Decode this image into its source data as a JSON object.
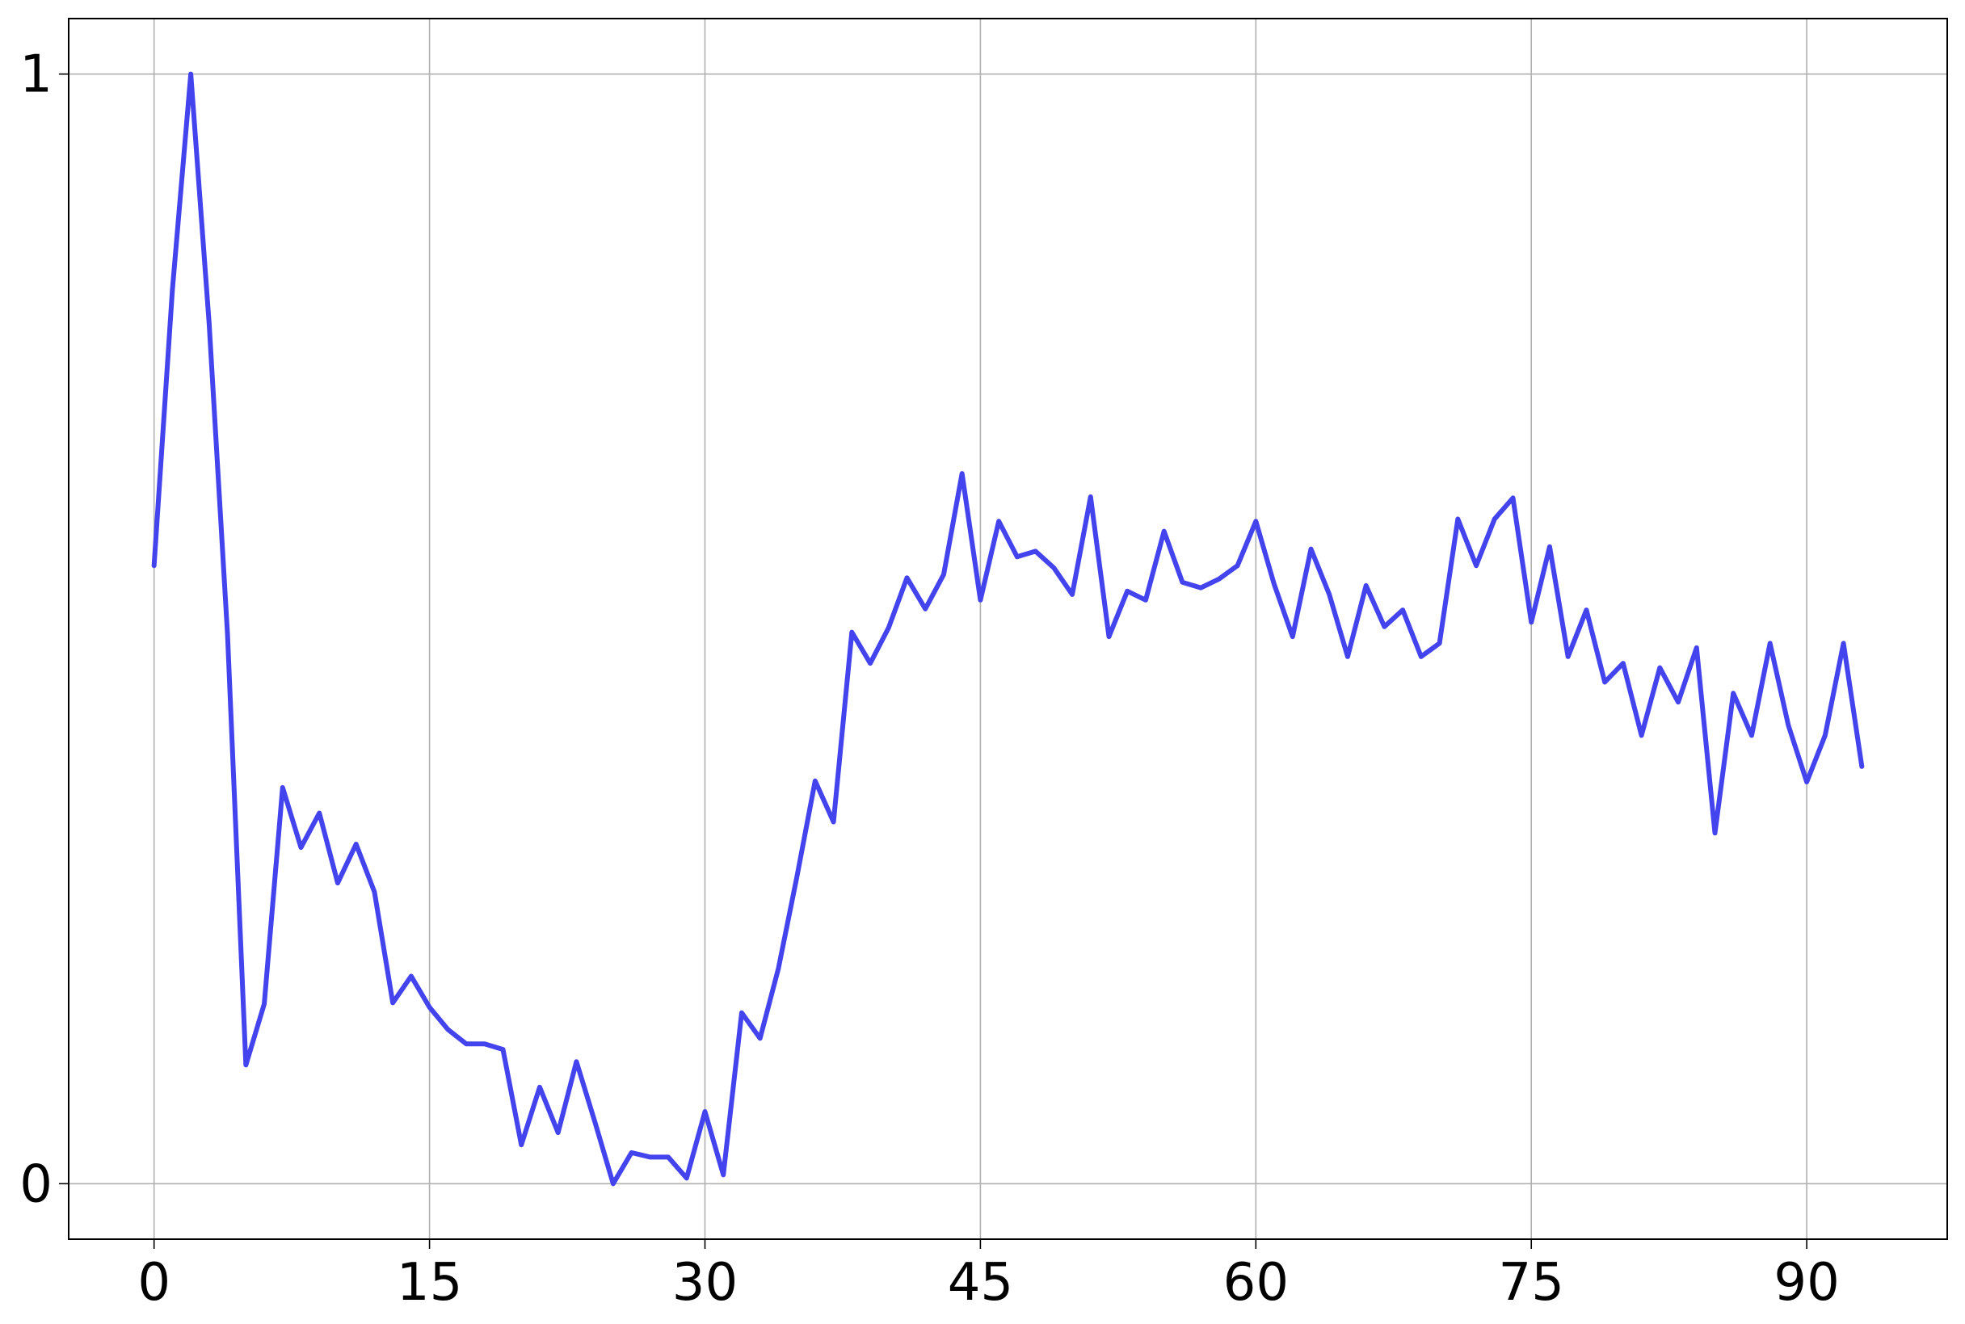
{
  "chart_data": {
    "type": "line",
    "title": "",
    "xlabel": "",
    "ylabel": "",
    "xlim": [
      -4.65,
      97.65
    ],
    "ylim": [
      -0.05,
      1.05
    ],
    "x_ticks": [
      0,
      15,
      30,
      45,
      60,
      75,
      90
    ],
    "x_tick_labels": [
      "0",
      "15",
      "30",
      "45",
      "60",
      "75",
      "90"
    ],
    "y_ticks": [
      0,
      1
    ],
    "y_tick_labels": [
      "0",
      "1"
    ],
    "grid": true,
    "legend": "none",
    "series": [
      {
        "color": "#4444ee",
        "x": [
          0,
          1,
          2,
          3,
          4,
          5,
          6,
          7,
          8,
          9,
          10,
          11,
          12,
          13,
          14,
          15,
          16,
          17,
          18,
          19,
          20,
          21,
          22,
          23,
          24,
          25,
          26,
          27,
          28,
          29,
          30,
          31,
          32,
          33,
          34,
          35,
          36,
          37,
          38,
          39,
          40,
          41,
          42,
          43,
          44,
          45,
          46,
          47,
          48,
          49,
          50,
          51,
          52,
          53,
          54,
          55,
          56,
          57,
          58,
          59,
          60,
          61,
          62,
          63,
          64,
          65,
          66,
          67,
          68,
          69,
          70,
          71,
          72,
          73,
          74,
          75,
          76,
          77,
          78,
          79,
          80,
          81,
          82,
          83,
          84,
          85,
          86,
          87,
          88,
          89,
          90,
          91,
          92,
          93
        ],
        "values": [
          0.557,
          0.806,
          1.0,
          0.775,
          0.495,
          0.107,
          0.162,
          0.357,
          0.303,
          0.334,
          0.271,
          0.306,
          0.263,
          0.163,
          0.187,
          0.159,
          0.139,
          0.126,
          0.126,
          0.121,
          0.035,
          0.087,
          0.046,
          0.11,
          0.056,
          0.0,
          0.028,
          0.024,
          0.024,
          0.005,
          0.065,
          0.008,
          0.154,
          0.131,
          0.194,
          0.276,
          0.363,
          0.326,
          0.497,
          0.469,
          0.501,
          0.546,
          0.518,
          0.549,
          0.64,
          0.526,
          0.597,
          0.565,
          0.57,
          0.555,
          0.531,
          0.619,
          0.493,
          0.534,
          0.526,
          0.588,
          0.542,
          0.537,
          0.545,
          0.557,
          0.597,
          0.54,
          0.493,
          0.572,
          0.531,
          0.475,
          0.539,
          0.502,
          0.517,
          0.475,
          0.487,
          0.599,
          0.557,
          0.599,
          0.618,
          0.506,
          0.574,
          0.475,
          0.517,
          0.452,
          0.469,
          0.404,
          0.465,
          0.434,
          0.483,
          0.316,
          0.442,
          0.404,
          0.487,
          0.413,
          0.362,
          0.404,
          0.487,
          0.376
        ]
      }
    ]
  }
}
